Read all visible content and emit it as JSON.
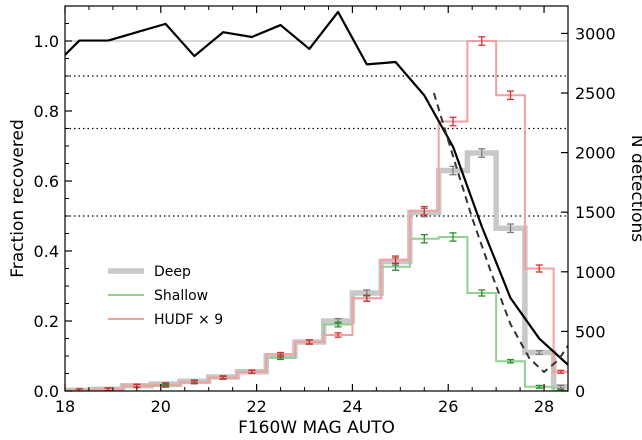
{
  "chart_data": {
    "type": "line",
    "xlabel": "F160W MAG AUTO",
    "ylabel": "Fraction recovered",
    "y2label": "N detections",
    "xlim": [
      18,
      28.5
    ],
    "ylim": [
      0,
      1.1
    ],
    "y2lim": [
      0,
      3230
    ],
    "x_ticks": [
      18,
      20,
      22,
      24,
      26,
      28
    ],
    "y_ticks": [
      0.0,
      0.2,
      0.4,
      0.6,
      0.8,
      1.0
    ],
    "y2_ticks": [
      0,
      500,
      1000,
      1500,
      2000,
      2500,
      3000
    ],
    "x_tick_labels": [
      "18",
      "20",
      "22",
      "24",
      "26",
      "28"
    ],
    "y_tick_labels": [
      "0.0",
      "0.2",
      "0.4",
      "0.6",
      "0.8",
      "1.0"
    ],
    "y2_tick_labels": [
      "0",
      "500",
      "1000",
      "1500",
      "2000",
      "2500",
      "3000"
    ],
    "reference_lines": [
      {
        "y": 1.0,
        "style": "solid",
        "color": "#b0b0b0"
      },
      {
        "y": 0.9,
        "style": "dotted",
        "color": "#000000"
      },
      {
        "y": 0.75,
        "style": "dotted",
        "color": "#000000"
      },
      {
        "y": 0.5,
        "style": "dotted",
        "color": "#000000"
      }
    ],
    "bin_edges": [
      18,
      18.6,
      19.2,
      19.8,
      20.4,
      21.0,
      21.6,
      22.2,
      22.8,
      23.4,
      24.0,
      24.6,
      25.2,
      25.8,
      26.4,
      27.0,
      27.6,
      28.2,
      28.5
    ],
    "series": [
      {
        "name": "Deep",
        "axis": "left",
        "style": "step",
        "color": "#c8c8c8",
        "errcolor": "#7a7a7a",
        "width": 5.5,
        "values": [
          0.002,
          0.005,
          0.015,
          0.02,
          0.028,
          0.04,
          0.055,
          0.1,
          0.14,
          0.2,
          0.28,
          0.37,
          0.51,
          0.63,
          0.68,
          0.465,
          0.11,
          0.012
        ]
      },
      {
        "name": "Shallow",
        "axis": "left",
        "style": "step",
        "color": "#90d090",
        "errcolor": "#2e8b2e",
        "width": 2,
        "values": [
          0.002,
          0.004,
          0.015,
          0.015,
          0.025,
          0.038,
          0.055,
          0.095,
          0.14,
          0.19,
          0.265,
          0.355,
          0.435,
          0.44,
          0.28,
          0.085,
          0.012,
          0.0
        ]
      },
      {
        "name": "HUDF × 9",
        "axis": "left",
        "style": "step",
        "color": "#f4a0a0",
        "errcolor": "#d83030",
        "width": 2,
        "values": [
          0.002,
          0.005,
          0.015,
          0.018,
          0.025,
          0.038,
          0.055,
          0.105,
          0.14,
          0.16,
          0.265,
          0.375,
          0.515,
          0.77,
          1.0,
          0.845,
          0.35,
          0.055
        ]
      },
      {
        "name": "",
        "axis": "right",
        "style": "solid",
        "color": "#000000",
        "x": [
          18.0,
          18.3,
          18.9,
          19.5,
          20.1,
          20.7,
          21.3,
          21.9,
          22.5,
          23.1,
          23.7,
          24.3,
          24.9,
          25.5,
          26.1,
          26.7,
          27.3,
          27.9,
          28.5
        ],
        "y": [
          2820,
          2940,
          2940,
          3010,
          3080,
          2810,
          3010,
          2970,
          3070,
          2870,
          3180,
          2740,
          2760,
          2480,
          2050,
          1380,
          780,
          440,
          220
        ]
      },
      {
        "name": "",
        "axis": "right",
        "style": "dashed",
        "color": "#333333",
        "x": [
          25.7,
          26.1,
          26.5,
          26.9,
          27.3,
          27.7,
          28.0,
          28.3,
          28.5
        ],
        "y": [
          2500,
          1970,
          1450,
          990,
          560,
          270,
          160,
          260,
          380
        ]
      }
    ],
    "legend": {
      "position": "lower-left",
      "entries": [
        "Deep",
        "Shallow",
        "HUDF × 9"
      ]
    },
    "grid": false
  }
}
